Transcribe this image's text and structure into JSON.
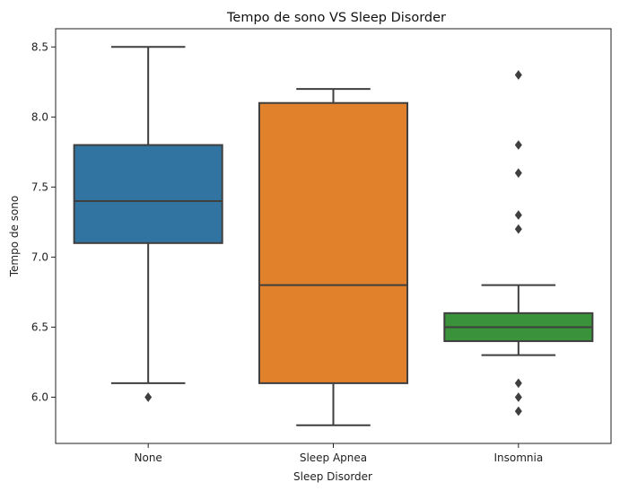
{
  "chart_data": {
    "type": "box",
    "title": "Tempo de sono VS Sleep Disorder",
    "xlabel": "Sleep Disorder",
    "ylabel": "Tempo de sono",
    "categories": [
      "None",
      "Sleep Apnea",
      "Insomnia"
    ],
    "ylim": [
      5.67,
      8.63
    ],
    "yticks": [
      "6.0",
      "6.5",
      "7.0",
      "7.5",
      "8.0",
      "8.5"
    ],
    "grid": false,
    "boxes": [
      {
        "category": "None",
        "color": "#3274a1",
        "whisker_low": 6.1,
        "q1": 7.1,
        "median": 7.4,
        "q3": 7.8,
        "whisker_high": 8.5,
        "outliers": [
          6.0
        ]
      },
      {
        "category": "Sleep Apnea",
        "color": "#e1812c",
        "whisker_low": 5.8,
        "q1": 6.1,
        "median": 6.8,
        "q3": 8.1,
        "whisker_high": 8.2,
        "outliers": []
      },
      {
        "category": "Insomnia",
        "color": "#3a923a",
        "whisker_low": 6.3,
        "q1": 6.4,
        "median": 6.5,
        "q3": 6.6,
        "whisker_high": 6.8,
        "outliers": [
          5.9,
          6.0,
          6.1,
          7.2,
          7.3,
          7.6,
          7.8,
          8.3
        ]
      }
    ]
  }
}
